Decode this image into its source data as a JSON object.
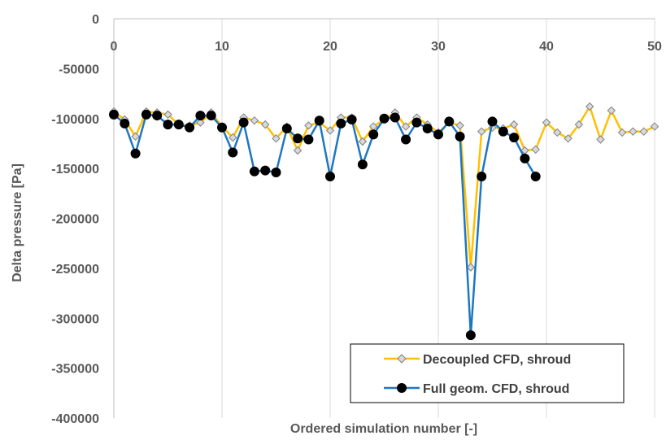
{
  "chart_data": {
    "type": "line",
    "title": "",
    "xlabel": "Ordered simulation number [-]",
    "ylabel": "Delta pressure [Pa]",
    "xlim": [
      0,
      50
    ],
    "ylim": [
      -400000,
      0
    ],
    "x_ticks": [
      0,
      10,
      20,
      30,
      40,
      50
    ],
    "y_ticks": [
      0,
      -50000,
      -100000,
      -150000,
      -200000,
      -250000,
      -300000,
      -350000,
      -400000
    ],
    "grid": "vertical",
    "legend_position": "bottom-right",
    "colors": {
      "axis": "#bfbfbf",
      "text": "#595959"
    },
    "series": [
      {
        "name": "Decoupled CFD, shroud",
        "color": "#ffc000",
        "marker": "diamond",
        "marker_fill": "#d9d9d9",
        "marker_stroke": "#7f7f7f",
        "x": [
          0,
          1,
          2,
          3,
          4,
          5,
          6,
          7,
          8,
          9,
          10,
          11,
          12,
          13,
          14,
          15,
          16,
          17,
          18,
          19,
          20,
          21,
          22,
          23,
          24,
          25,
          26,
          27,
          28,
          29,
          30,
          31,
          32,
          33,
          34,
          35,
          36,
          37,
          38,
          39,
          40,
          41,
          42,
          43,
          44,
          45,
          46,
          47,
          48,
          49,
          50
        ],
        "y": [
          -93000,
          -101000,
          -118000,
          -93000,
          -94000,
          -96000,
          -106000,
          -107000,
          -104000,
          -94000,
          -108000,
          -119000,
          -99000,
          -102000,
          -106000,
          -120000,
          -108000,
          -132000,
          -107000,
          -104000,
          -112000,
          -99000,
          -99000,
          -123000,
          -108000,
          -101000,
          -94000,
          -108000,
          -99000,
          -106000,
          -114000,
          -104000,
          -107000,
          -249000,
          -113000,
          -109000,
          -110000,
          -106000,
          -132000,
          -131000,
          -104000,
          -114000,
          -120000,
          -106000,
          -88000,
          -121000,
          -92000,
          -114000,
          -113000,
          -113000,
          -108000
        ]
      },
      {
        "name": "Full geom. CFD, shroud",
        "color": "#1f77c0",
        "marker": "circle",
        "marker_fill": "#000000",
        "marker_stroke": "#000000",
        "x": [
          0,
          1,
          2,
          3,
          4,
          5,
          6,
          7,
          8,
          9,
          10,
          11,
          12,
          13,
          14,
          15,
          16,
          17,
          18,
          19,
          20,
          21,
          22,
          23,
          24,
          25,
          26,
          27,
          28,
          29,
          30,
          31,
          32,
          33,
          34,
          35,
          36,
          37,
          38,
          39
        ],
        "y": [
          -96000,
          -105000,
          -135000,
          -96000,
          -97000,
          -106000,
          -106000,
          -109000,
          -97000,
          -97000,
          -109000,
          -134000,
          -104000,
          -153000,
          -152000,
          -154000,
          -110000,
          -120000,
          -121000,
          -102000,
          -158000,
          -105000,
          -101000,
          -146000,
          -116000,
          -100000,
          -99000,
          -121000,
          -104000,
          -110000,
          -116000,
          -103000,
          -118000,
          -317000,
          -158000,
          -103000,
          -113000,
          -119000,
          -140000,
          -158000
        ]
      }
    ]
  }
}
